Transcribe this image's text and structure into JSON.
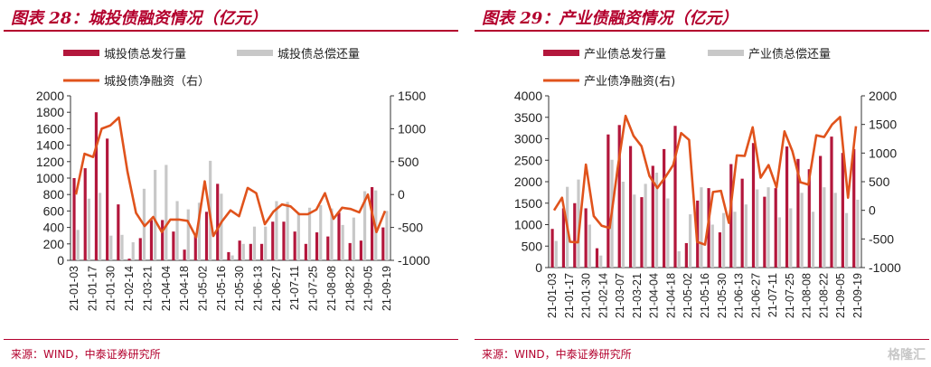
{
  "charts": [
    {
      "title": "图表 28：城投债融资情况（亿元）",
      "source": "来源：WIND，中泰证券研究所",
      "colors": {
        "issue": "#b3173c",
        "repay": "#c8c8c8",
        "net": "#e0531c"
      }
    },
    {
      "title": "图表 29：产业债融资情况（亿元）",
      "source": "来源：WIND，中泰证券研究所",
      "colors": {
        "issue": "#b3173c",
        "repay": "#c8c8c8",
        "net": "#e0531c"
      }
    }
  ],
  "watermark": "格隆汇",
  "chart_data": [
    {
      "type": "bar+line",
      "title": "图表 28：城投债融资情况（亿元）",
      "legend": [
        "城投债总发行量",
        "城投债总偿还量",
        "城投债净融资（右）"
      ],
      "x_tick_labels": [
        "21-01-03",
        "21-01-17",
        "21-01-30",
        "21-02-14",
        "21-03-21",
        "21-04-04",
        "21-04-18",
        "21-05-02",
        "21-05-16",
        "21-05-30",
        "21-06-13",
        "21-06-27",
        "21-07-11",
        "21-07-25",
        "21-08-08",
        "21-08-22",
        "21-09-05",
        "21-09-19"
      ],
      "left_axis": {
        "min": 0,
        "max": 2000,
        "ticks": [
          0,
          200,
          400,
          600,
          800,
          1000,
          1200,
          1400,
          1600,
          1800,
          2000
        ]
      },
      "right_axis": {
        "min": -1000,
        "max": 1500,
        "ticks": [
          -1000,
          -500,
          0,
          500,
          1000,
          1500
        ]
      },
      "series": [
        {
          "name": "城投债总发行量",
          "kind": "bar",
          "axis": "left",
          "values": [
            1000,
            1120,
            1800,
            1480,
            680,
            20,
            270,
            490,
            490,
            350,
            130,
            300,
            590,
            930,
            100,
            240,
            200,
            200,
            470,
            470,
            350,
            200,
            340,
            290,
            580,
            210,
            240,
            890,
            400
          ]
        },
        {
          "name": "城投债总偿还量",
          "kind": "bar",
          "axis": "left",
          "values": [
            370,
            750,
            820,
            300,
            310,
            220,
            870,
            1100,
            1160,
            720,
            620,
            700,
            1210,
            810,
            60,
            200,
            410,
            410,
            720,
            710,
            580,
            640,
            670,
            630,
            430,
            520,
            840,
            850,
            600
          ]
        },
        {
          "name": "城投债净融资（右）",
          "kind": "line",
          "axis": "right",
          "values": [
            0,
            620,
            570,
            1000,
            1050,
            1170,
            350,
            -280,
            -480,
            -340,
            -570,
            -380,
            -380,
            -400,
            -650,
            200,
            -630,
            -410,
            -240,
            -330,
            100,
            20,
            -450,
            -260,
            -150,
            -180,
            -300,
            -300,
            -230,
            20,
            -370,
            -200,
            -220,
            -270,
            0,
            -570,
            -250
          ]
        }
      ]
    },
    {
      "type": "bar+line",
      "title": "图表 29：产业债融资情况（亿元）",
      "legend": [
        "产业债总发行量",
        "产业债总偿还量",
        "产业债净融资(右)"
      ],
      "x_tick_labels": [
        "21-01-03",
        "21-01-17",
        "21-01-30",
        "21-02-14",
        "21-03-07",
        "21-03-21",
        "21-04-04",
        "21-04-18",
        "21-05-02",
        "21-05-16",
        "21-05-30",
        "21-06-13",
        "21-06-27",
        "21-07-11",
        "21-07-25",
        "21-08-08",
        "21-08-22",
        "21-09-05",
        "21-09-19"
      ],
      "left_axis": {
        "min": 0,
        "max": 4000,
        "ticks": [
          0,
          500,
          1000,
          1500,
          2000,
          2500,
          3000,
          3500,
          4000
        ]
      },
      "right_axis": {
        "min": -1000,
        "max": 2000,
        "ticks": [
          -1000,
          -500,
          0,
          500,
          1000,
          1500,
          2000
        ]
      },
      "series": [
        {
          "name": "产业债总发行量",
          "kind": "bar",
          "axis": "left",
          "values": [
            900,
            1380,
            1500,
            1380,
            450,
            3100,
            3320,
            2830,
            1640,
            2370,
            2760,
            3300,
            570,
            1560,
            1850,
            820,
            2410,
            2070,
            2900,
            1650,
            1850,
            2820,
            2530,
            2290,
            2600,
            3050,
            2670,
            2760
          ]
        },
        {
          "name": "产业债总偿还量",
          "kind": "bar",
          "axis": "left",
          "values": [
            620,
            1880,
            2050,
            1000,
            280,
            2510,
            2000,
            1700,
            1950,
            2210,
            1610,
            380,
            1240,
            1870,
            1000,
            1270,
            1300,
            1470,
            1820,
            1870,
            1170,
            1380,
            1740,
            1300,
            1870,
            1740,
            1270,
            1580
          ]
        },
        {
          "name": "产业债净融资(右)",
          "kind": "line",
          "axis": "right",
          "values": [
            0,
            220,
            -550,
            -560,
            800,
            -100,
            -270,
            -310,
            730,
            1650,
            1300,
            1120,
            600,
            390,
            580,
            790,
            1350,
            1230,
            -550,
            -600,
            320,
            340,
            -220,
            960,
            950,
            1450,
            570,
            790,
            400,
            1380,
            1030,
            490,
            450,
            1310,
            1280,
            1500,
            1630,
            220,
            1470
          ]
        }
      ]
    }
  ]
}
